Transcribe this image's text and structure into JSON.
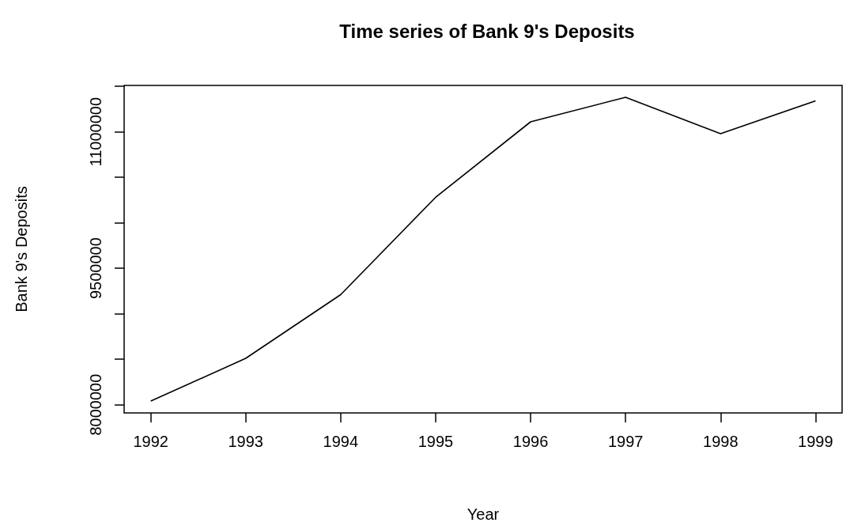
{
  "chart_data": {
    "type": "line",
    "title": "Time series of Bank 9's Deposits",
    "xlabel": "Year",
    "ylabel": "Bank 9's Deposits",
    "x": [
      1992,
      1993,
      1994,
      1995,
      1996,
      1997,
      1998,
      1999
    ],
    "values": [
      8040000,
      8510000,
      9210000,
      10280000,
      11110000,
      11380000,
      10980000,
      11340000
    ],
    "color": "#000000",
    "marker": "none",
    "line_style": "solid",
    "grid": false,
    "xlim": [
      1991.72,
      1999.28
    ],
    "xticks": [
      1992,
      1993,
      1994,
      1995,
      1996,
      1997,
      1998,
      1999
    ],
    "ylim": [
      7910000,
      11510000
    ],
    "yticks": [
      8000000,
      {
        "value": 8500000,
        "label": null
      },
      {
        "value": 9000000,
        "label": null
      },
      9500000,
      {
        "value": 10000000,
        "label": null
      },
      {
        "value": 10500000,
        "label": null
      },
      11000000,
      {
        "value": 11500000,
        "label": null
      }
    ]
  }
}
